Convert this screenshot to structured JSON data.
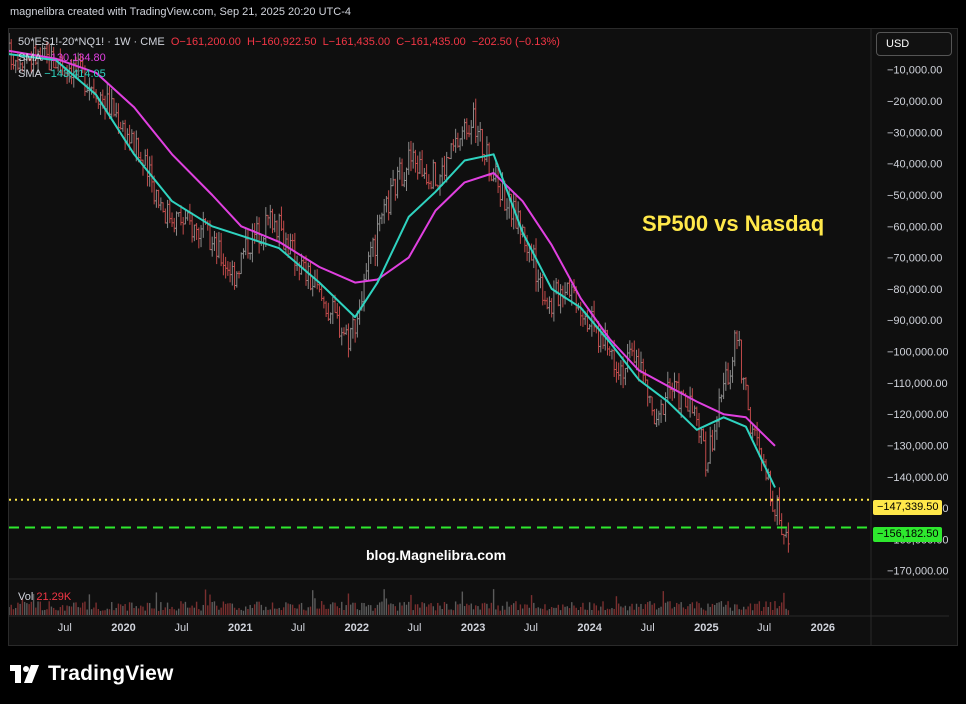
{
  "header": {
    "text": "magnelibra created with TradingView.com, Sep 21, 2025 20:20 UTC-4"
  },
  "legend": {
    "symbol": "50*ES1!-20*NQ1! · 1W · CME",
    "open": "O−161,200.00",
    "high": "H−160,922.50",
    "low": "L−161,435.00",
    "close": "C−161,435.00",
    "change": "−202.50 (−0.13%)",
    "sma1_label": "SMA",
    "sma1_value": "−130,134.80",
    "sma2_label": "SMA",
    "sma2_value": "−143,414.05"
  },
  "currency": "USD",
  "annotation": {
    "title": "SP500 vs Nasdaq",
    "watermark": "blog.Magnelibra.com"
  },
  "volume": {
    "label": "Vol",
    "value": "21.29K"
  },
  "logo": {
    "text": "TradingView"
  },
  "colors": {
    "up": "#8a8a8a",
    "down": "#c04a4a",
    "sma_slow": "#e040e0",
    "sma_fast": "#2fd3c0",
    "level_yellow": "#ffe84a",
    "level_green": "#2ee82e",
    "text": "#d1d4dc",
    "background": "#0f0f0f"
  },
  "chart_data": {
    "type": "line",
    "title": "",
    "xlabel": "",
    "ylabel": "",
    "ylim": [
      -172000,
      3000
    ],
    "y_ticks": [
      "−10,000.00",
      "−20,000.00",
      "−30,000.00",
      "−40,000.00",
      "−50,000.00",
      "−60,000.00",
      "−70,000.00",
      "−80,000.00",
      "−90,000.00",
      "−100,000.00",
      "−110,000.00",
      "−120,000.00",
      "−130,000.00",
      "−140,000.00",
      "−150,000.00",
      "−160,000.00",
      "−170,000.00"
    ],
    "y_tick_values": [
      -10000,
      -20000,
      -30000,
      -40000,
      -50000,
      -60000,
      -70000,
      -80000,
      -90000,
      -100000,
      -110000,
      -120000,
      -130000,
      -140000,
      -150000,
      -160000,
      -170000
    ],
    "x_ticks": [
      "Jul",
      "2020",
      "Jul",
      "2021",
      "Jul",
      "2022",
      "Jul",
      "2023",
      "Jul",
      "2024",
      "Jul",
      "2025",
      "Jul",
      "2026"
    ],
    "x_tick_dates": [
      "2019-07-01",
      "2020-01-01",
      "2020-07-01",
      "2021-01-01",
      "2021-07-01",
      "2022-01-01",
      "2022-07-01",
      "2023-01-01",
      "2023-07-01",
      "2024-01-01",
      "2024-07-01",
      "2025-01-01",
      "2025-07-01",
      "2026-01-01"
    ],
    "x_range": [
      "2019-01-07",
      "2026-06-01"
    ],
    "levels": [
      {
        "value": -147339.5,
        "label": "−147,339.50",
        "style": "dotted",
        "color": "#ffe84a"
      },
      {
        "value": -156182.5,
        "label": "−156,182.50",
        "style": "dashed",
        "color": "#2ee82e"
      }
    ],
    "price_anchors": [
      {
        "date": "2019-01-07",
        "close": -5000
      },
      {
        "date": "2019-04-15",
        "close": -6000
      },
      {
        "date": "2019-07-15",
        "close": -8000
      },
      {
        "date": "2019-09-30",
        "close": -15000
      },
      {
        "date": "2019-12-16",
        "close": -25000
      },
      {
        "date": "2020-03-02",
        "close": -40000
      },
      {
        "date": "2020-05-11",
        "close": -55000
      },
      {
        "date": "2020-09-07",
        "close": -62000
      },
      {
        "date": "2020-12-14",
        "close": -75000
      },
      {
        "date": "2021-01-25",
        "close": -65000
      },
      {
        "date": "2021-04-12",
        "close": -57000
      },
      {
        "date": "2021-06-14",
        "close": -68000
      },
      {
        "date": "2021-09-06",
        "close": -82000
      },
      {
        "date": "2021-12-06",
        "close": -95000
      },
      {
        "date": "2022-01-03",
        "close": -88000
      },
      {
        "date": "2022-02-21",
        "close": -68000
      },
      {
        "date": "2022-04-18",
        "close": -50000
      },
      {
        "date": "2022-06-13",
        "close": -38000
      },
      {
        "date": "2022-09-12",
        "close": -45000
      },
      {
        "date": "2022-10-17",
        "close": -38000
      },
      {
        "date": "2022-12-26",
        "close": -25000
      },
      {
        "date": "2023-02-27",
        "close": -42000
      },
      {
        "date": "2023-05-29",
        "close": -60000
      },
      {
        "date": "2023-08-28",
        "close": -85000
      },
      {
        "date": "2023-10-23",
        "close": -77000
      },
      {
        "date": "2024-01-29",
        "close": -95000
      },
      {
        "date": "2024-04-15",
        "close": -105000
      },
      {
        "date": "2024-05-27",
        "close": -100000
      },
      {
        "date": "2024-07-29",
        "close": -125000
      },
      {
        "date": "2024-09-02",
        "close": -110000
      },
      {
        "date": "2024-11-25",
        "close": -120000
      },
      {
        "date": "2024-12-30",
        "close": -135000
      },
      {
        "date": "2025-03-03",
        "close": -110000
      },
      {
        "date": "2025-04-07",
        "close": -95000
      },
      {
        "date": "2025-05-12",
        "close": -120000
      },
      {
        "date": "2025-07-07",
        "close": -140000
      },
      {
        "date": "2025-09-15",
        "close": -161435
      }
    ],
    "series": [
      {
        "name": "SMA",
        "last_value": -130134.8,
        "x": [
          "2019-01-07",
          "2019-06-03",
          "2019-10-07",
          "2020-02-03",
          "2020-06-01",
          "2020-10-05",
          "2021-01-04",
          "2021-05-03",
          "2021-09-06",
          "2021-12-27",
          "2022-03-07",
          "2022-06-13",
          "2022-09-05",
          "2022-12-05",
          "2023-03-06",
          "2023-06-05",
          "2023-09-04",
          "2023-12-04",
          "2024-03-04",
          "2024-06-03",
          "2024-09-02",
          "2024-12-02",
          "2025-02-24",
          "2025-05-05",
          "2025-08-04"
        ],
        "y": [
          -4000,
          -6500,
          -11000,
          -22000,
          -37000,
          -50000,
          -60000,
          -65000,
          -73000,
          -78000,
          -77000,
          -70000,
          -55000,
          -46000,
          -43000,
          -52000,
          -66000,
          -83000,
          -96000,
          -106000,
          -111000,
          -116000,
          -120000,
          -121000,
          -130135
        ]
      },
      {
        "name": "SMA",
        "last_value": -143414.05,
        "x": [
          "2019-01-07",
          "2019-06-03",
          "2019-10-07",
          "2020-02-03",
          "2020-06-01",
          "2020-10-05",
          "2021-01-04",
          "2021-05-03",
          "2021-09-06",
          "2021-12-27",
          "2022-03-07",
          "2022-06-13",
          "2022-09-05",
          "2022-12-05",
          "2023-03-06",
          "2023-06-05",
          "2023-09-04",
          "2023-12-04",
          "2024-03-04",
          "2024-06-03",
          "2024-09-02",
          "2024-12-02",
          "2025-02-24",
          "2025-05-05",
          "2025-08-04"
        ],
        "y": [
          -5000,
          -7000,
          -18000,
          -37000,
          -52000,
          -60000,
          -63000,
          -67000,
          -78000,
          -89000,
          -78000,
          -57000,
          -49000,
          -39000,
          -37000,
          -62000,
          -80000,
          -86000,
          -97000,
          -109000,
          -116000,
          -125000,
          -121000,
          -124000,
          -143414
        ]
      }
    ]
  }
}
